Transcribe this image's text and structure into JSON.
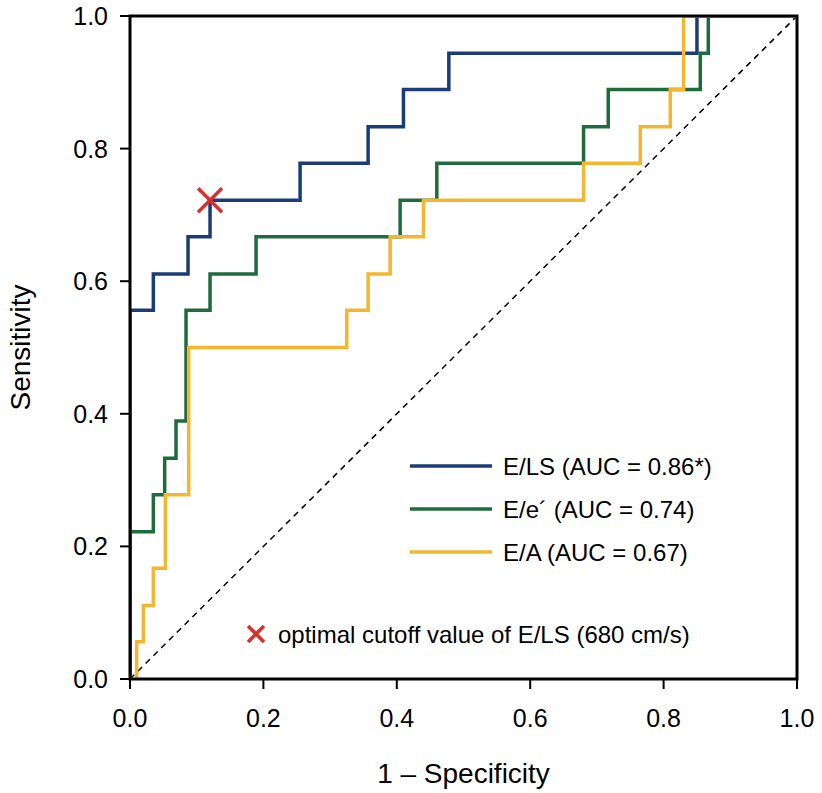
{
  "chart_data": {
    "type": "line",
    "x_label": "1 – Specificity",
    "y_label": "Sensitivity",
    "xlim": [
      0,
      1
    ],
    "ylim": [
      0,
      1
    ],
    "xticks": [
      {
        "value": 0,
        "label": "0.0"
      },
      0.2,
      0.4,
      0.6,
      0.8,
      {
        "value": 1,
        "label": "1.0"
      }
    ],
    "yticks": [
      {
        "value": 0,
        "label": "0.0"
      },
      0.2,
      0.4,
      0.6,
      0.8,
      {
        "value": 1,
        "label": "1.0"
      }
    ],
    "grid": false,
    "legend": "lower right",
    "series": [
      {
        "name": "E/LS (AUC = 0.86*)",
        "color": "#1c3c78",
        "line_style": "solid",
        "x": [
          0,
          0,
          0.035,
          0.035,
          0.087,
          0.087,
          0.12,
          0.12,
          0.255,
          0.255,
          0.357,
          0.357,
          0.41,
          0.41,
          0.478,
          0.478,
          0.85,
          0.85,
          1
        ],
        "values": [
          0,
          0.556,
          0.556,
          0.611,
          0.611,
          0.667,
          0.667,
          0.722,
          0.722,
          0.778,
          0.778,
          0.833,
          0.833,
          0.889,
          0.889,
          0.944,
          0.944,
          1,
          1
        ]
      },
      {
        "name": "E/e´ (AUC = 0.74)",
        "color": "#1e6b3c",
        "line_style": "solid",
        "x": [
          0,
          0,
          0.035,
          0.035,
          0.052,
          0.052,
          0.069,
          0.069,
          0.084,
          0.084,
          0.12,
          0.12,
          0.189,
          0.189,
          0.405,
          0.405,
          0.46,
          0.46,
          0.68,
          0.68,
          0.717,
          0.717,
          0.855,
          0.855,
          0.867,
          0.867,
          1
        ],
        "values": [
          0,
          0.222,
          0.222,
          0.278,
          0.278,
          0.333,
          0.333,
          0.389,
          0.389,
          0.556,
          0.556,
          0.611,
          0.611,
          0.667,
          0.667,
          0.722,
          0.722,
          0.778,
          0.778,
          0.833,
          0.833,
          0.889,
          0.889,
          0.944,
          0.944,
          1,
          1
        ]
      },
      {
        "name": "E/A (AUC = 0.67)",
        "color": "#f4b630",
        "line_style": "solid",
        "x": [
          0.01,
          0.01,
          0.02,
          0.02,
          0.035,
          0.035,
          0.053,
          0.053,
          0.088,
          0.088,
          0.325,
          0.325,
          0.357,
          0.357,
          0.39,
          0.39,
          0.44,
          0.44,
          0.68,
          0.68,
          0.765,
          0.765,
          0.81,
          0.81,
          0.83,
          0.83,
          1
        ],
        "values": [
          0,
          0.056,
          0.056,
          0.111,
          0.111,
          0.167,
          0.167,
          0.278,
          0.278,
          0.5,
          0.5,
          0.556,
          0.556,
          0.611,
          0.611,
          0.667,
          0.667,
          0.722,
          0.722,
          0.778,
          0.778,
          0.833,
          0.833,
          0.889,
          0.889,
          1,
          1
        ]
      }
    ],
    "annotations": [
      {
        "x": 0.12,
        "y": 0.722,
        "text": "optimal cutoff value of E/LS (680 cm/s)",
        "color": "#d8302c",
        "marker": "x"
      }
    ]
  }
}
